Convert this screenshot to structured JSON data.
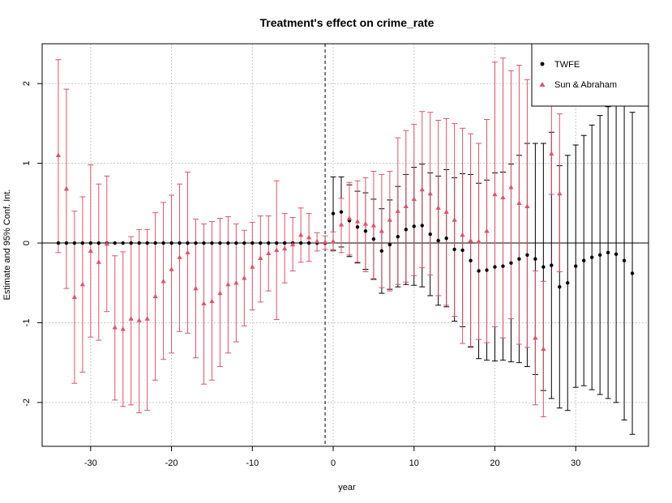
{
  "chart_data": {
    "type": "scatter",
    "title": "Treatment's effect on crime_rate",
    "xlabel": "year",
    "ylabel": "Estimate and 95% Conf. Int.",
    "xlim": [
      -36,
      39
    ],
    "ylim": [
      -2.55,
      2.5
    ],
    "xticks": [
      -30,
      -20,
      -10,
      0,
      10,
      20,
      30
    ],
    "yticks": [
      -2,
      -1,
      0,
      1,
      2
    ],
    "reference_x": -1,
    "grid": true,
    "legend_position": "top-right",
    "colors": {
      "twfe": "#000000",
      "sa": "#df536b",
      "grid": "#c8c8c8"
    },
    "series": [
      {
        "name": "TWFE",
        "marker": "circle",
        "points": [
          {
            "x": -34,
            "y": 0
          },
          {
            "x": -33,
            "y": 0
          },
          {
            "x": -32,
            "y": 0
          },
          {
            "x": -31,
            "y": 0
          },
          {
            "x": -30,
            "y": 0
          },
          {
            "x": -29,
            "y": 0
          },
          {
            "x": -28,
            "y": 0
          },
          {
            "x": -27,
            "y": 0
          },
          {
            "x": -26,
            "y": 0
          },
          {
            "x": -25,
            "y": 0
          },
          {
            "x": -24,
            "y": 0
          },
          {
            "x": -23,
            "y": 0
          },
          {
            "x": -22,
            "y": 0
          },
          {
            "x": -21,
            "y": 0
          },
          {
            "x": -20,
            "y": 0
          },
          {
            "x": -19,
            "y": 0
          },
          {
            "x": -18,
            "y": 0
          },
          {
            "x": -17,
            "y": 0
          },
          {
            "x": -16,
            "y": 0
          },
          {
            "x": -15,
            "y": 0
          },
          {
            "x": -14,
            "y": 0
          },
          {
            "x": -13,
            "y": 0
          },
          {
            "x": -12,
            "y": 0
          },
          {
            "x": -11,
            "y": 0
          },
          {
            "x": -10,
            "y": 0
          },
          {
            "x": -9,
            "y": 0
          },
          {
            "x": -8,
            "y": 0
          },
          {
            "x": -7,
            "y": 0
          },
          {
            "x": -6,
            "y": 0
          },
          {
            "x": -5,
            "y": 0
          },
          {
            "x": -4,
            "y": 0
          },
          {
            "x": -3,
            "y": 0
          },
          {
            "x": -2,
            "y": 0
          },
          {
            "x": -1,
            "y": 0
          },
          {
            "x": 0,
            "y": 0.37,
            "lo": -0.09,
            "hi": 0.83
          },
          {
            "x": 1,
            "y": 0.39,
            "lo": -0.05,
            "hi": 0.83
          },
          {
            "x": 2,
            "y": 0.28,
            "lo": -0.17,
            "hi": 0.73
          },
          {
            "x": 3,
            "y": 0.2,
            "lo": -0.25,
            "hi": 0.65
          },
          {
            "x": 4,
            "y": 0.15,
            "lo": -0.33,
            "hi": 0.63
          },
          {
            "x": 5,
            "y": 0.05,
            "lo": -0.45,
            "hi": 0.55
          },
          {
            "x": 6,
            "y": -0.1,
            "lo": -0.63,
            "hi": 0.43
          },
          {
            "x": 7,
            "y": -0.02,
            "lo": -0.58,
            "hi": 0.54
          },
          {
            "x": 8,
            "y": 0.08,
            "lo": -0.55,
            "hi": 0.71
          },
          {
            "x": 9,
            "y": 0.17,
            "lo": -0.52,
            "hi": 0.86
          },
          {
            "x": 10,
            "y": 0.21,
            "lo": -0.53,
            "hi": 0.95
          },
          {
            "x": 11,
            "y": 0.22,
            "lo": -0.55,
            "hi": 0.99
          },
          {
            "x": 12,
            "y": 0.11,
            "lo": -0.66,
            "hi": 0.88
          },
          {
            "x": 13,
            "y": 0.03,
            "lo": -0.78,
            "hi": 0.84
          },
          {
            "x": 14,
            "y": 0.06,
            "lo": -0.8,
            "hi": 0.92
          },
          {
            "x": 15,
            "y": -0.08,
            "lo": -0.98,
            "hi": 0.82
          },
          {
            "x": 16,
            "y": -0.09,
            "lo": -1.05,
            "hi": 0.87
          },
          {
            "x": 17,
            "y": -0.22,
            "lo": -1.3,
            "hi": 0.86
          },
          {
            "x": 18,
            "y": -0.35,
            "lo": -1.45,
            "hi": 0.75
          },
          {
            "x": 19,
            "y": -0.34,
            "lo": -1.47,
            "hi": 0.79
          },
          {
            "x": 20,
            "y": -0.3,
            "lo": -1.48,
            "hi": 0.88
          },
          {
            "x": 21,
            "y": -0.29,
            "lo": -1.47,
            "hi": 0.89
          },
          {
            "x": 22,
            "y": -0.25,
            "lo": -1.49,
            "hi": 0.99
          },
          {
            "x": 23,
            "y": -0.2,
            "lo": -1.5,
            "hi": 1.1
          },
          {
            "x": 24,
            "y": -0.15,
            "lo": -1.55,
            "hi": 1.25
          },
          {
            "x": 25,
            "y": -0.2,
            "lo": -1.65,
            "hi": 1.25
          },
          {
            "x": 26,
            "y": -0.3,
            "lo": -1.85,
            "hi": 1.25
          },
          {
            "x": 27,
            "y": -0.28,
            "lo": -1.95,
            "hi": 1.39
          },
          {
            "x": 28,
            "y": -0.55,
            "lo": -2.07,
            "hi": 0.97
          },
          {
            "x": 29,
            "y": -0.5,
            "lo": -2.1,
            "hi": 1.1
          },
          {
            "x": 30,
            "y": -0.29,
            "lo": -1.81,
            "hi": 1.23
          },
          {
            "x": 31,
            "y": -0.22,
            "lo": -1.79,
            "hi": 1.35
          },
          {
            "x": 32,
            "y": -0.18,
            "lo": -1.84,
            "hi": 1.48
          },
          {
            "x": 33,
            "y": -0.15,
            "lo": -1.9,
            "hi": 1.6
          },
          {
            "x": 34,
            "y": -0.12,
            "lo": -1.95,
            "hi": 1.71
          },
          {
            "x": 35,
            "y": -0.14,
            "lo": -2.0,
            "hi": 1.72
          },
          {
            "x": 36,
            "y": -0.22,
            "lo": -2.22,
            "hi": 1.78
          },
          {
            "x": 37,
            "y": -0.38,
            "lo": -2.4,
            "hi": 1.64
          }
        ]
      },
      {
        "name": "Sun & Abraham",
        "marker": "triangle",
        "points": [
          {
            "x": -34,
            "y": 1.1,
            "lo": -0.12,
            "hi": 2.3
          },
          {
            "x": -33,
            "y": 0.68,
            "lo": -0.57,
            "hi": 1.93
          },
          {
            "x": -32,
            "y": -0.68,
            "lo": -1.76,
            "hi": 0.4
          },
          {
            "x": -31,
            "y": -0.52,
            "lo": -1.62,
            "hi": 0.58
          },
          {
            "x": -30,
            "y": -0.1,
            "lo": -1.18,
            "hi": 0.98
          },
          {
            "x": -29,
            "y": -0.24,
            "lo": -1.22,
            "hi": 0.74
          },
          {
            "x": -28,
            "y": -0.01,
            "lo": -0.86,
            "hi": 0.84
          },
          {
            "x": -27,
            "y": -1.06,
            "lo": -1.97,
            "hi": -0.16
          },
          {
            "x": -26,
            "y": -1.08,
            "lo": -2.05,
            "hi": -0.11
          },
          {
            "x": -25,
            "y": -0.95,
            "lo": -2.03,
            "hi": 0.08
          },
          {
            "x": -24,
            "y": -0.97,
            "lo": -2.13,
            "hi": 0.17
          },
          {
            "x": -23,
            "y": -0.95,
            "lo": -2.1,
            "hi": 0.17
          },
          {
            "x": -22,
            "y": -0.67,
            "lo": -1.72,
            "hi": 0.38
          },
          {
            "x": -21,
            "y": -0.48,
            "lo": -1.46,
            "hi": 0.51
          },
          {
            "x": -20,
            "y": -0.33,
            "lo": -1.38,
            "hi": 0.6
          },
          {
            "x": -19,
            "y": -0.18,
            "lo": -1.11,
            "hi": 0.74
          },
          {
            "x": -18,
            "y": -0.12,
            "lo": -1.13,
            "hi": 0.89
          },
          {
            "x": -17,
            "y": -0.57,
            "lo": -1.44,
            "hi": 0.3
          },
          {
            "x": -16,
            "y": -0.76,
            "lo": -1.77,
            "hi": 0.24
          },
          {
            "x": -15,
            "y": -0.73,
            "lo": -1.72,
            "hi": 0.27
          },
          {
            "x": -14,
            "y": -0.63,
            "lo": -1.55,
            "hi": 0.31
          },
          {
            "x": -13,
            "y": -0.52,
            "lo": -1.38,
            "hi": 0.33
          },
          {
            "x": -12,
            "y": -0.5,
            "lo": -1.24,
            "hi": 0.24
          },
          {
            "x": -11,
            "y": -0.44,
            "lo": -1.04,
            "hi": 0.16
          },
          {
            "x": -10,
            "y": -0.3,
            "lo": -0.84,
            "hi": 0.26
          },
          {
            "x": -9,
            "y": -0.19,
            "lo": -0.74,
            "hi": 0.34
          },
          {
            "x": -8,
            "y": -0.13,
            "lo": -0.6,
            "hi": 0.34
          },
          {
            "x": -7,
            "y": -0.09,
            "lo": -0.96,
            "hi": 0.78
          },
          {
            "x": -6,
            "y": -0.07,
            "lo": -0.5,
            "hi": 0.37
          },
          {
            "x": -5,
            "y": -0.02,
            "lo": -0.35,
            "hi": 0.32
          },
          {
            "x": -4,
            "y": 0.1,
            "lo": -0.24,
            "hi": 0.44
          },
          {
            "x": -3,
            "y": 0.07,
            "lo": -0.23,
            "hi": 0.37
          },
          {
            "x": -2,
            "y": 0.02,
            "lo": -0.1,
            "hi": 0.13
          },
          {
            "x": -1,
            "y": 0.01,
            "lo": -0.08,
            "hi": 0.09
          },
          {
            "x": 0,
            "y": 0.02,
            "lo": -0.1,
            "hi": 0.14
          },
          {
            "x": 1,
            "y": 0.23,
            "lo": -0.12,
            "hi": 0.56
          },
          {
            "x": 2,
            "y": 0.31,
            "lo": -0.15,
            "hi": 0.76
          },
          {
            "x": 3,
            "y": 0.27,
            "lo": -0.24,
            "hi": 0.78
          },
          {
            "x": 4,
            "y": 0.24,
            "lo": -0.36,
            "hi": 0.82
          },
          {
            "x": 5,
            "y": 0.22,
            "lo": -0.46,
            "hi": 0.9
          },
          {
            "x": 6,
            "y": 0.15,
            "lo": -0.56,
            "hi": 0.86
          },
          {
            "x": 7,
            "y": 0.29,
            "lo": -0.6,
            "hi": 0.9
          },
          {
            "x": 8,
            "y": 0.4,
            "lo": -0.52,
            "hi": 1.32
          },
          {
            "x": 9,
            "y": 0.46,
            "lo": -0.49,
            "hi": 1.41
          },
          {
            "x": 10,
            "y": 0.55,
            "lo": -0.41,
            "hi": 1.49
          },
          {
            "x": 11,
            "y": 0.67,
            "lo": -0.31,
            "hi": 1.65
          },
          {
            "x": 12,
            "y": 0.62,
            "lo": -0.4,
            "hi": 1.64
          },
          {
            "x": 13,
            "y": 0.44,
            "lo": -0.66,
            "hi": 1.54
          },
          {
            "x": 14,
            "y": 0.39,
            "lo": -0.78,
            "hi": 1.56
          },
          {
            "x": 15,
            "y": 0.29,
            "lo": -0.92,
            "hi": 1.5
          },
          {
            "x": 16,
            "y": 0.1,
            "lo": -1.26,
            "hi": 1.44
          },
          {
            "x": 17,
            "y": 0.03,
            "lo": -1.31,
            "hi": 1.37
          },
          {
            "x": 18,
            "y": 0.02,
            "lo": -1.21,
            "hi": 1.25
          },
          {
            "x": 19,
            "y": 0.15,
            "lo": -1.25,
            "hi": 1.55
          },
          {
            "x": 20,
            "y": 0.61,
            "lo": -1.05,
            "hi": 2.27
          },
          {
            "x": 21,
            "y": 0.57,
            "lo": -1.19,
            "hi": 2.32
          },
          {
            "x": 22,
            "y": 0.7,
            "lo": -0.95,
            "hi": 2.16
          },
          {
            "x": 23,
            "y": 0.5,
            "lo": -1.27,
            "hi": 2.23
          },
          {
            "x": 24,
            "y": 0.46,
            "lo": -1.31,
            "hi": 2.05
          },
          {
            "x": 25,
            "y": -1.19,
            "lo": -2.03,
            "hi": -0.35
          },
          {
            "x": 26,
            "y": -1.33,
            "lo": -2.18,
            "hi": -0.48
          },
          {
            "x": 27,
            "y": 1.12,
            "lo": 0.61,
            "hi": 1.9
          },
          {
            "x": 28,
            "y": 0.62,
            "lo": -0.36,
            "hi": 1.62
          }
        ]
      }
    ]
  }
}
